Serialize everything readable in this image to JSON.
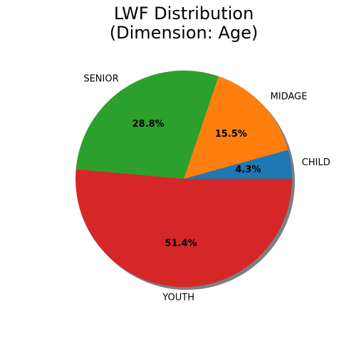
{
  "chart_data": {
    "type": "pie",
    "title_lines": [
      "LWF Distribution",
      "(Dimension: Age)"
    ],
    "categories": [
      "CHILD",
      "MIDAGE",
      "SENIOR",
      "YOUTH"
    ],
    "values": [
      4.3,
      15.5,
      28.8,
      51.4
    ],
    "value_labels": [
      "4.3%",
      "15.5%",
      "28.8%",
      "51.4%"
    ],
    "colors": [
      "#1f77b4",
      "#ff7f0e",
      "#2ca02c",
      "#d62728"
    ],
    "start_angle_deg": 0,
    "direction": "counterclockwise",
    "shadow": true,
    "legend": "none"
  }
}
